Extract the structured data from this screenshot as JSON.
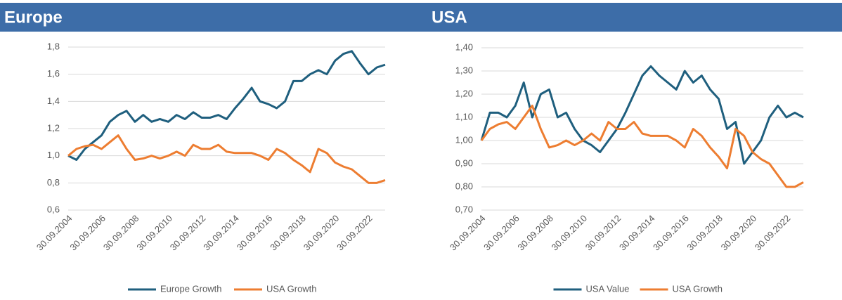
{
  "chart_data": [
    {
      "type": "line",
      "title": "Europe",
      "x": [
        "30.09.2004",
        "31.03.2005",
        "30.09.2005",
        "31.03.2006",
        "30.09.2006",
        "31.03.2007",
        "30.09.2007",
        "31.03.2008",
        "30.09.2008",
        "31.03.2009",
        "30.09.2009",
        "31.03.2010",
        "30.09.2010",
        "31.03.2011",
        "30.09.2011",
        "31.03.2012",
        "30.09.2012",
        "31.03.2013",
        "30.09.2013",
        "31.03.2014",
        "30.09.2014",
        "31.03.2015",
        "30.09.2015",
        "31.03.2016",
        "30.09.2016",
        "31.03.2017",
        "30.09.2017",
        "31.03.2018",
        "30.09.2018",
        "31.03.2019",
        "30.09.2019",
        "31.03.2020",
        "30.09.2020",
        "31.03.2021",
        "30.09.2021",
        "31.03.2022",
        "30.09.2022",
        "31.03.2023",
        "30.09.2023"
      ],
      "series": [
        {
          "name": "Europe Growth",
          "color": "#1f5f7e",
          "values": [
            1.0,
            0.97,
            1.05,
            1.1,
            1.15,
            1.25,
            1.3,
            1.33,
            1.25,
            1.3,
            1.25,
            1.27,
            1.25,
            1.3,
            1.27,
            1.32,
            1.28,
            1.28,
            1.3,
            1.27,
            1.35,
            1.42,
            1.5,
            1.4,
            1.38,
            1.35,
            1.4,
            1.55,
            1.55,
            1.6,
            1.63,
            1.6,
            1.7,
            1.75,
            1.77,
            1.68,
            1.6,
            1.65,
            1.67
          ]
        },
        {
          "name": "USA Growth",
          "color": "#ed7d31",
          "values": [
            1.0,
            1.05,
            1.07,
            1.08,
            1.05,
            1.1,
            1.15,
            1.05,
            0.97,
            0.98,
            1.0,
            0.98,
            1.0,
            1.03,
            1.0,
            1.08,
            1.05,
            1.05,
            1.08,
            1.03,
            1.02,
            1.02,
            1.02,
            1.0,
            0.97,
            1.05,
            1.02,
            0.97,
            0.93,
            0.88,
            1.05,
            1.02,
            0.95,
            0.92,
            0.9,
            0.85,
            0.8,
            0.8,
            0.82
          ]
        }
      ],
      "xlim": [
        "30.09.2004",
        "30.09.2023"
      ],
      "xticks": [
        "30.09.2004",
        "30.09.2006",
        "30.09.2008",
        "30.09.2010",
        "30.09.2012",
        "30.09.2014",
        "30.09.2016",
        "30.09.2018",
        "30.09.2020",
        "30.09.2022"
      ],
      "ylim": [
        0.6,
        1.8
      ],
      "yticks": [
        {
          "value": 0.6,
          "label": "0,6"
        },
        {
          "value": 0.8,
          "label": "0,8"
        },
        {
          "value": 1.0,
          "label": "1,0"
        },
        {
          "value": 1.2,
          "label": "1,2"
        },
        {
          "value": 1.4,
          "label": "1,4"
        },
        {
          "value": 1.6,
          "label": "1,6"
        },
        {
          "value": 1.8,
          "label": "1,8"
        }
      ],
      "grid": true,
      "legend": "bottom"
    },
    {
      "type": "line",
      "title": "USA",
      "x": [
        "30.09.2004",
        "31.03.2005",
        "30.09.2005",
        "31.03.2006",
        "30.09.2006",
        "31.03.2007",
        "30.09.2007",
        "31.03.2008",
        "30.09.2008",
        "31.03.2009",
        "30.09.2009",
        "31.03.2010",
        "30.09.2010",
        "31.03.2011",
        "30.09.2011",
        "31.03.2012",
        "30.09.2012",
        "31.03.2013",
        "30.09.2013",
        "31.03.2014",
        "30.09.2014",
        "31.03.2015",
        "30.09.2015",
        "31.03.2016",
        "30.09.2016",
        "31.03.2017",
        "30.09.2017",
        "31.03.2018",
        "30.09.2018",
        "31.03.2019",
        "30.09.2019",
        "31.03.2020",
        "30.09.2020",
        "31.03.2021",
        "30.09.2021",
        "31.03.2022",
        "30.09.2022",
        "31.03.2023",
        "30.09.2023"
      ],
      "series": [
        {
          "name": "USA Value",
          "color": "#1f5f7e",
          "values": [
            1.0,
            1.12,
            1.12,
            1.1,
            1.15,
            1.25,
            1.1,
            1.2,
            1.22,
            1.1,
            1.12,
            1.05,
            1.0,
            0.98,
            0.95,
            1.0,
            1.05,
            1.12,
            1.2,
            1.28,
            1.32,
            1.28,
            1.25,
            1.22,
            1.3,
            1.25,
            1.28,
            1.22,
            1.18,
            1.05,
            1.08,
            0.9,
            0.95,
            1.0,
            1.1,
            1.15,
            1.1,
            1.12,
            1.1
          ]
        },
        {
          "name": "USA Growth",
          "color": "#ed7d31",
          "values": [
            1.0,
            1.05,
            1.07,
            1.08,
            1.05,
            1.1,
            1.15,
            1.05,
            0.97,
            0.98,
            1.0,
            0.98,
            1.0,
            1.03,
            1.0,
            1.08,
            1.05,
            1.05,
            1.08,
            1.03,
            1.02,
            1.02,
            1.02,
            1.0,
            0.97,
            1.05,
            1.02,
            0.97,
            0.93,
            0.88,
            1.05,
            1.02,
            0.95,
            0.92,
            0.9,
            0.85,
            0.8,
            0.8,
            0.82
          ]
        }
      ],
      "xlim": [
        "30.09.2004",
        "30.09.2023"
      ],
      "xticks": [
        "30.09.2004",
        "30.09.2006",
        "30.09.2008",
        "30.09.2010",
        "30.09.2012",
        "30.09.2014",
        "30.09.2016",
        "30.09.2018",
        "30.09.2020",
        "30.09.2022"
      ],
      "ylim": [
        0.7,
        1.4
      ],
      "yticks": [
        {
          "value": 0.7,
          "label": "0,70"
        },
        {
          "value": 0.8,
          "label": "0,80"
        },
        {
          "value": 0.9,
          "label": "0,90"
        },
        {
          "value": 1.0,
          "label": "1,00"
        },
        {
          "value": 1.1,
          "label": "1,10"
        },
        {
          "value": 1.2,
          "label": "1,20"
        },
        {
          "value": 1.3,
          "label": "1,30"
        },
        {
          "value": 1.4,
          "label": "1,40"
        }
      ],
      "grid": true,
      "legend": "bottom"
    }
  ]
}
